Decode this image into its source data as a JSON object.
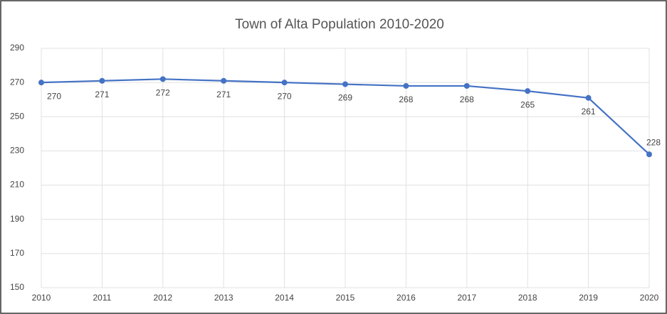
{
  "chart_data": {
    "type": "line",
    "title": "Town of Alta Population 2010-2020",
    "x": [
      2010,
      2011,
      2012,
      2013,
      2014,
      2015,
      2016,
      2017,
      2018,
      2019,
      2020
    ],
    "series": [
      {
        "name": "Population",
        "color": "#4472c4",
        "values": [
          270,
          271,
          272,
          271,
          270,
          269,
          268,
          268,
          265,
          261,
          228
        ]
      }
    ],
    "xlim": [
      2010,
      2020
    ],
    "xticks": [
      2010,
      2011,
      2012,
      2013,
      2014,
      2015,
      2016,
      2017,
      2018,
      2019,
      2020
    ],
    "ylim": [
      150,
      290
    ],
    "yticks": [
      150,
      170,
      190,
      210,
      230,
      250,
      270,
      290
    ],
    "grid": true
  }
}
